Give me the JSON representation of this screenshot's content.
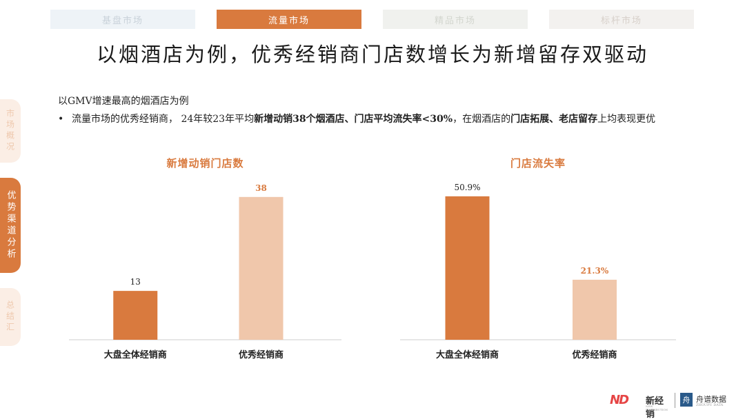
{
  "tabs": [
    {
      "label": "基盘市场"
    },
    {
      "label": "流量市场"
    },
    {
      "label": "精品市场"
    },
    {
      "label": "标杆市场"
    }
  ],
  "title": "以烟酒店为例，优秀经销商门店数增长为新增留存双驱动",
  "side_nav": [
    {
      "label": "市场概况"
    },
    {
      "label": "优势渠道分析"
    },
    {
      "label": "总结汇"
    }
  ],
  "intro": "以GMV增速最高的烟酒店为例",
  "bullet": {
    "dot": "•",
    "t1": "流量市场的优秀经销商， 24年较23年平均",
    "b1": "新增动销38个烟酒店、门店平均流失率<30%",
    "t2": "，在烟酒店的",
    "b2": "门店拓展、老店留存",
    "t3": "上均表现更优"
  },
  "colors": {
    "accent": "#d97a3e",
    "light": "#f0c7ab",
    "axis": "#cccccc"
  },
  "chart_data": [
    {
      "type": "bar",
      "title": "新增动销门店数",
      "categories": [
        "大盘全体经销商",
        "优秀经销商"
      ],
      "values": [
        13,
        38
      ],
      "labels": [
        "13",
        "38"
      ],
      "ylim": [
        0,
        42
      ]
    },
    {
      "type": "bar",
      "title": "门店流失率",
      "categories": [
        "大盘全体经销商",
        "优秀经销商"
      ],
      "values": [
        50.9,
        21.3
      ],
      "labels": [
        "50.9%",
        "21.3%"
      ],
      "ylim": [
        0,
        56
      ]
    }
  ],
  "footer": {
    "logo1_mark": "ND",
    "logo1_name": "新经销",
    "logo1_sub": "NEW DISTRIBUTION",
    "logo2_icon": "舟",
    "logo2_name": "舟谱数据",
    "logo2_sub": "ZHOUPU DATA"
  }
}
